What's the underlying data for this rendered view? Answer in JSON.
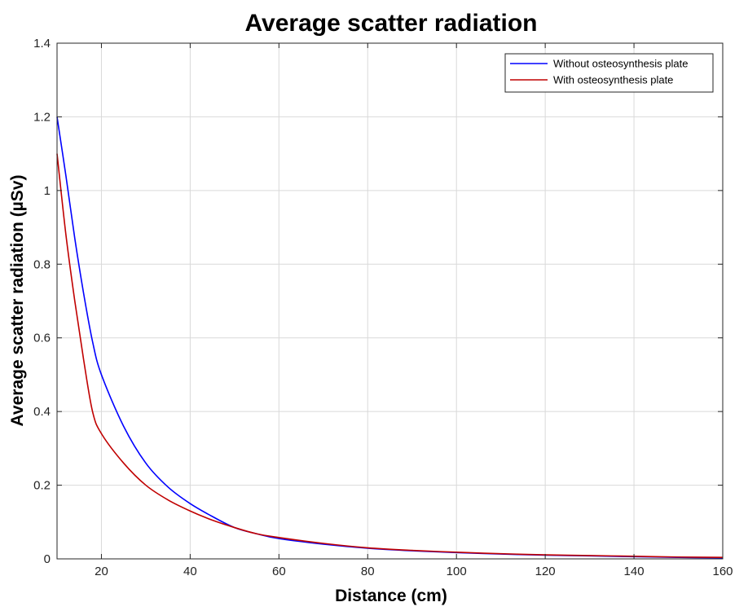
{
  "chart_data": {
    "type": "line",
    "title": "Average scatter radiation",
    "xlabel": "Distance (cm)",
    "ylabel": "Average scatter radiation (µSv)",
    "xlim": [
      10,
      160
    ],
    "ylim": [
      0,
      1.4
    ],
    "xticks": [
      20,
      40,
      60,
      80,
      100,
      120,
      140,
      160
    ],
    "yticks": [
      0,
      0.2,
      0.4,
      0.6,
      0.8,
      1,
      1.2,
      1.4
    ],
    "xtick_labels": [
      "20",
      "40",
      "60",
      "80",
      "100",
      "120",
      "140",
      "160"
    ],
    "ytick_labels": [
      "0",
      "0.2",
      "0.4",
      "0.6",
      "0.8",
      "1",
      "1.2",
      "1.4"
    ],
    "grid": true,
    "legend_position": "top-right",
    "series": [
      {
        "name": "Without osteosynthesis plate",
        "color": "#0000ff",
        "x": [
          10,
          12,
          14,
          16,
          18,
          20,
          25,
          30,
          35,
          40,
          45,
          50,
          55,
          60,
          70,
          80,
          90,
          100,
          110,
          120,
          130,
          140,
          150,
          160
        ],
        "y": [
          1.2,
          1.04,
          0.87,
          0.72,
          0.59,
          0.5,
          0.36,
          0.26,
          0.195,
          0.15,
          0.115,
          0.085,
          0.068,
          0.055,
          0.04,
          0.029,
          0.022,
          0.017,
          0.013,
          0.01,
          0.008,
          0.006,
          0.004,
          0.003
        ]
      },
      {
        "name": "With osteosynthesis plate",
        "color": "#c00000",
        "x": [
          10,
          12,
          14,
          16,
          18,
          20,
          25,
          30,
          35,
          40,
          45,
          50,
          55,
          60,
          70,
          80,
          90,
          100,
          110,
          120,
          130,
          140,
          150,
          160
        ],
        "y": [
          1.1,
          0.88,
          0.7,
          0.54,
          0.4,
          0.34,
          0.26,
          0.2,
          0.16,
          0.13,
          0.105,
          0.085,
          0.068,
          0.058,
          0.042,
          0.03,
          0.023,
          0.018,
          0.014,
          0.011,
          0.009,
          0.007,
          0.005,
          0.004
        ]
      }
    ]
  }
}
